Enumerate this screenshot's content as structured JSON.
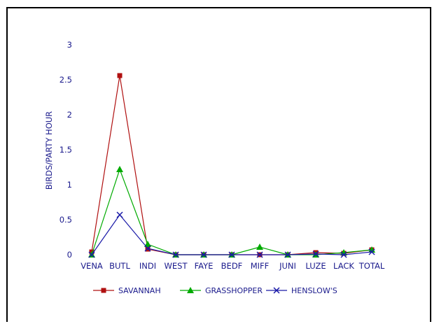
{
  "chart_data": {
    "type": "line",
    "title": "",
    "xlabel": "",
    "ylabel": "BIRDS/PARTY HOUR",
    "categories": [
      "VENA",
      "BUTL",
      "INDI",
      "WEST",
      "FAYE",
      "BEDF",
      "MIFF",
      "JUNI",
      "LUZE",
      "LACK",
      "TOTAL"
    ],
    "ylim": [
      0,
      3
    ],
    "yticks": [
      "0",
      "0.5",
      "1",
      "1.5",
      "2",
      "2.5",
      "3"
    ],
    "grid": false,
    "legend_position": "bottom",
    "series": [
      {
        "name": "SAVANNAH",
        "color": "#b01010",
        "marker": "square",
        "values": [
          0.04,
          2.56,
          0.08,
          0.0,
          0.0,
          0.0,
          0.0,
          0.0,
          0.03,
          0.02,
          0.07
        ]
      },
      {
        "name": "GRASSHOPPER",
        "color": "#00aa00",
        "marker": "triangle",
        "values": [
          0.0,
          1.22,
          0.15,
          0.0,
          0.0,
          0.0,
          0.11,
          0.0,
          0.0,
          0.03,
          0.07
        ]
      },
      {
        "name": "HENSLOW'S",
        "color": "#1a1aa8",
        "marker": "x",
        "values": [
          0.0,
          0.57,
          0.09,
          0.0,
          0.0,
          0.0,
          0.0,
          0.0,
          0.01,
          0.0,
          0.04
        ]
      }
    ]
  }
}
